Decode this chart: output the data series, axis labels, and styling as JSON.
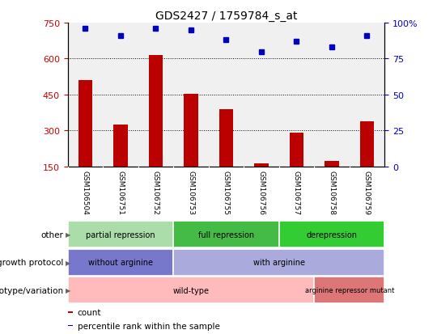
{
  "title": "GDS2427 / 1759784_s_at",
  "samples": [
    "GSM106504",
    "GSM106751",
    "GSM106752",
    "GSM106753",
    "GSM106755",
    "GSM106756",
    "GSM106757",
    "GSM106758",
    "GSM106759"
  ],
  "counts": [
    510,
    325,
    615,
    455,
    390,
    165,
    290,
    175,
    340
  ],
  "percentile_ranks": [
    96,
    91,
    96,
    95,
    88,
    80,
    87,
    83,
    91
  ],
  "ylim_left": [
    150,
    750
  ],
  "ylim_right": [
    0,
    100
  ],
  "yticks_left": [
    150,
    300,
    450,
    600,
    750
  ],
  "yticks_right": [
    0,
    25,
    50,
    75,
    100
  ],
  "bar_color": "#bb0000",
  "dot_color": "#0000bb",
  "bar_bottom": 150,
  "bar_width": 0.4,
  "annotation_rows": [
    {
      "label": "other",
      "segments": [
        {
          "text": "partial repression",
          "start": 0,
          "end": 3,
          "color": "#aaddaa"
        },
        {
          "text": "full repression",
          "start": 3,
          "end": 6,
          "color": "#44bb44"
        },
        {
          "text": "derepression",
          "start": 6,
          "end": 9,
          "color": "#33cc33"
        }
      ]
    },
    {
      "label": "growth protocol",
      "segments": [
        {
          "text": "without arginine",
          "start": 0,
          "end": 3,
          "color": "#7777cc"
        },
        {
          "text": "with arginine",
          "start": 3,
          "end": 9,
          "color": "#aaaadd"
        }
      ]
    },
    {
      "label": "genotype/variation",
      "segments": [
        {
          "text": "wild-type",
          "start": 0,
          "end": 7,
          "color": "#ffbbbb"
        },
        {
          "text": "arginine repressor mutant",
          "start": 7,
          "end": 9,
          "color": "#dd7777"
        }
      ]
    }
  ],
  "legend_items": [
    {
      "color": "#bb0000",
      "label": "count"
    },
    {
      "color": "#0000bb",
      "label": "percentile rank within the sample"
    }
  ],
  "xtick_bg": "#cccccc",
  "chart_bg": "#f0f0f0",
  "tick_label_color_left": "#cc0000",
  "tick_label_color_right": "#0000cc"
}
